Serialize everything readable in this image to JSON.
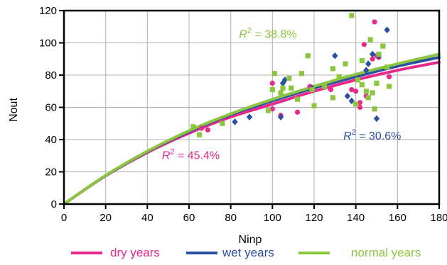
{
  "chart_data": {
    "type": "scatter",
    "title": "",
    "xlabel": "Ninp",
    "ylabel": "Nout",
    "xlim": [
      0,
      180
    ],
    "ylim": [
      0,
      120
    ],
    "x_ticks": [
      0,
      20,
      40,
      60,
      80,
      100,
      120,
      140,
      160,
      180
    ],
    "y_ticks": [
      0,
      20,
      40,
      60,
      80,
      100,
      120
    ],
    "grid": true,
    "legend_position": "bottom",
    "series": [
      {
        "name": "dry years",
        "color": "#e8298a",
        "marker": "circle",
        "points": [
          [
            66,
            47
          ],
          [
            69,
            46
          ],
          [
            100,
            75
          ],
          [
            100,
            59
          ],
          [
            104,
            55
          ],
          [
            112,
            57
          ],
          [
            118,
            73
          ],
          [
            128,
            71
          ],
          [
            138,
            71
          ],
          [
            140,
            70
          ],
          [
            142,
            60
          ],
          [
            142,
            63
          ],
          [
            144,
            99
          ],
          [
            145,
            67
          ],
          [
            148,
            90
          ],
          [
            149,
            113
          ],
          [
            150,
            92
          ],
          [
            151,
            91
          ],
          [
            156,
            79
          ]
        ],
        "fit_y_at_x": [
          [
            0,
            0
          ],
          [
            20,
            17.5
          ],
          [
            40,
            32
          ],
          [
            60,
            44
          ],
          [
            80,
            54
          ],
          [
            100,
            62
          ],
          [
            120,
            70
          ],
          [
            140,
            77
          ],
          [
            160,
            83
          ],
          [
            180,
            88
          ]
        ]
      },
      {
        "name": "wet years",
        "color": "#2b4fa2",
        "marker": "diamond",
        "points": [
          [
            82,
            51
          ],
          [
            89,
            54
          ],
          [
            104,
            54
          ],
          [
            105,
            75
          ],
          [
            106,
            77
          ],
          [
            119,
            72
          ],
          [
            130,
            92
          ],
          [
            136,
            67
          ],
          [
            138,
            64
          ],
          [
            141,
            78
          ],
          [
            145,
            83
          ],
          [
            146,
            87
          ],
          [
            148,
            93
          ],
          [
            150,
            53
          ],
          [
            151,
            92
          ],
          [
            155,
            108
          ]
        ],
        "fit_y_at_x": [
          [
            0,
            0
          ],
          [
            20,
            17.7
          ],
          [
            40,
            32.5
          ],
          [
            60,
            45
          ],
          [
            80,
            55.5
          ],
          [
            100,
            64
          ],
          [
            120,
            72
          ],
          [
            140,
            79
          ],
          [
            160,
            85.5
          ],
          [
            180,
            91
          ]
        ]
      },
      {
        "name": "normal years",
        "color": "#8cc63f",
        "marker": "square",
        "points": [
          [
            62,
            48
          ],
          [
            65,
            43
          ],
          [
            76,
            50
          ],
          [
            98,
            58
          ],
          [
            100,
            71
          ],
          [
            101,
            81
          ],
          [
            104,
            69
          ],
          [
            105,
            72
          ],
          [
            108,
            78
          ],
          [
            109,
            72
          ],
          [
            112,
            65
          ],
          [
            114,
            81
          ],
          [
            117,
            92
          ],
          [
            119,
            71
          ],
          [
            120,
            61
          ],
          [
            125,
            73
          ],
          [
            129,
            66
          ],
          [
            129,
            84
          ],
          [
            132,
            79
          ],
          [
            135,
            87
          ],
          [
            138,
            117
          ],
          [
            140,
            62
          ],
          [
            141,
            77
          ],
          [
            143,
            74
          ],
          [
            143,
            89
          ],
          [
            145,
            70
          ],
          [
            146,
            66
          ],
          [
            147,
            102
          ],
          [
            148,
            69
          ],
          [
            149,
            59
          ],
          [
            150,
            75
          ],
          [
            151,
            93
          ],
          [
            153,
            98
          ],
          [
            155,
            85
          ],
          [
            156,
            73
          ]
        ],
        "fit_y_at_x": [
          [
            0,
            0
          ],
          [
            20,
            17.8
          ],
          [
            40,
            32.8
          ],
          [
            60,
            45.5
          ],
          [
            80,
            56
          ],
          [
            100,
            65
          ],
          [
            120,
            73
          ],
          [
            140,
            80.5
          ],
          [
            160,
            87
          ],
          [
            180,
            93
          ]
        ]
      }
    ],
    "annotations": [
      {
        "text": "= 38.8%",
        "series": "normal years",
        "at": [
          84,
          103
        ]
      },
      {
        "text": "= 30.6%",
        "series": "wet years",
        "at": [
          134,
          40
        ]
      },
      {
        "text": "= 45.4%",
        "series": "dry years",
        "at": [
          47,
          28
        ]
      }
    ]
  }
}
